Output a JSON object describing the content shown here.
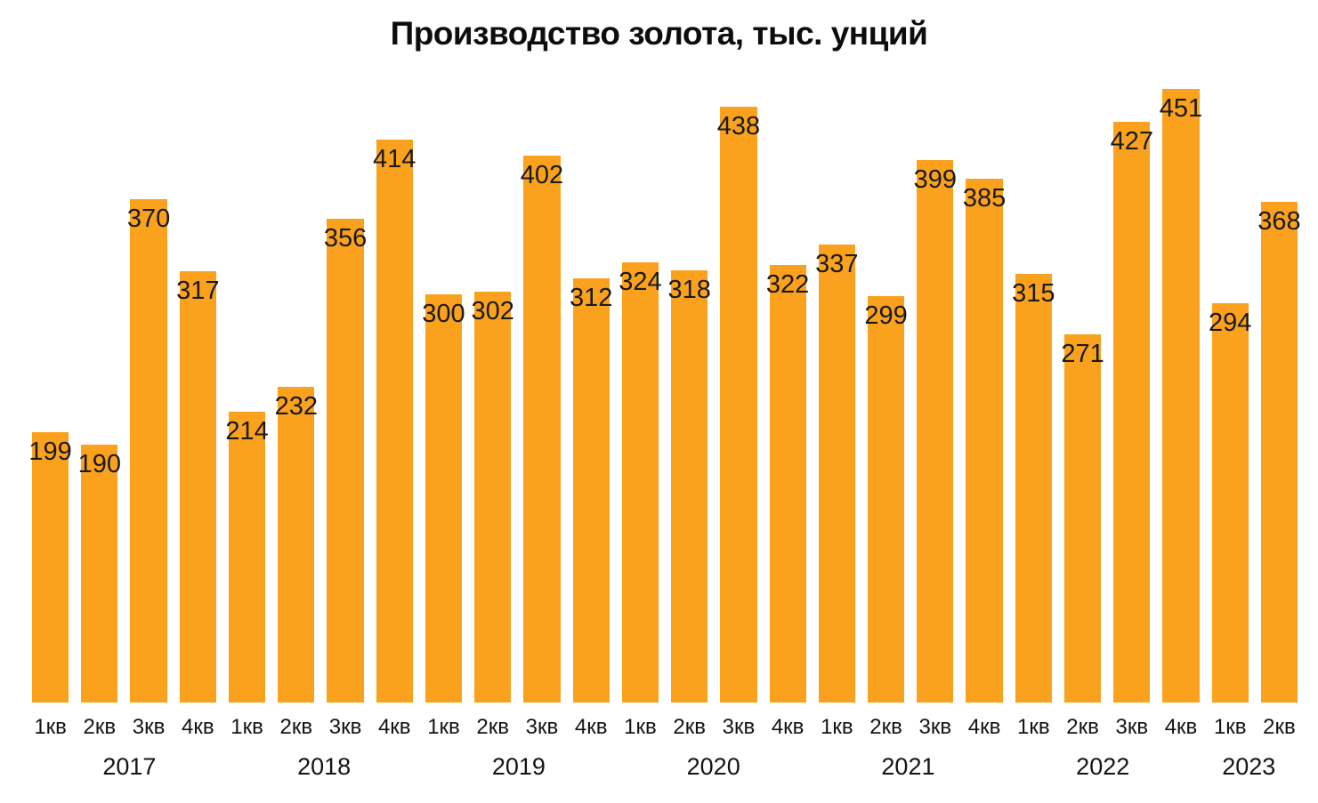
{
  "chart_data": {
    "type": "bar",
    "title": "Производство золота, тыс. унций",
    "categories": [
      "1кв",
      "2кв",
      "3кв",
      "4кв",
      "1кв",
      "2кв",
      "3кв",
      "4кв",
      "1кв",
      "2кв",
      "3кв",
      "4кв",
      "1кв",
      "2кв",
      "3кв",
      "4кв",
      "1кв",
      "2кв",
      "3кв",
      "4кв",
      "1кв",
      "2кв",
      "3кв",
      "4кв",
      "1кв",
      "2кв"
    ],
    "values": [
      199,
      190,
      370,
      317,
      214,
      232,
      356,
      414,
      300,
      302,
      402,
      312,
      324,
      318,
      438,
      322,
      337,
      299,
      399,
      385,
      315,
      271,
      427,
      451,
      294,
      368
    ],
    "year_groups": [
      {
        "label": "2017",
        "quarters": 4
      },
      {
        "label": "2018",
        "quarters": 4
      },
      {
        "label": "2019",
        "quarters": 4
      },
      {
        "label": "2020",
        "quarters": 4
      },
      {
        "label": "2021",
        "quarters": 4
      },
      {
        "label": "2022",
        "quarters": 4
      },
      {
        "label": "2023",
        "quarters": 2
      }
    ],
    "xlabel": "",
    "ylabel": "",
    "ylim": [
      0,
      460
    ],
    "grid": false,
    "legend": false,
    "value_labels": true,
    "colors": {
      "bar": "#FAA21E",
      "value_label": "#1A1A1A",
      "tick_label": "#141414",
      "title": "#0D0D0D",
      "background": "#FFFFFF"
    }
  }
}
